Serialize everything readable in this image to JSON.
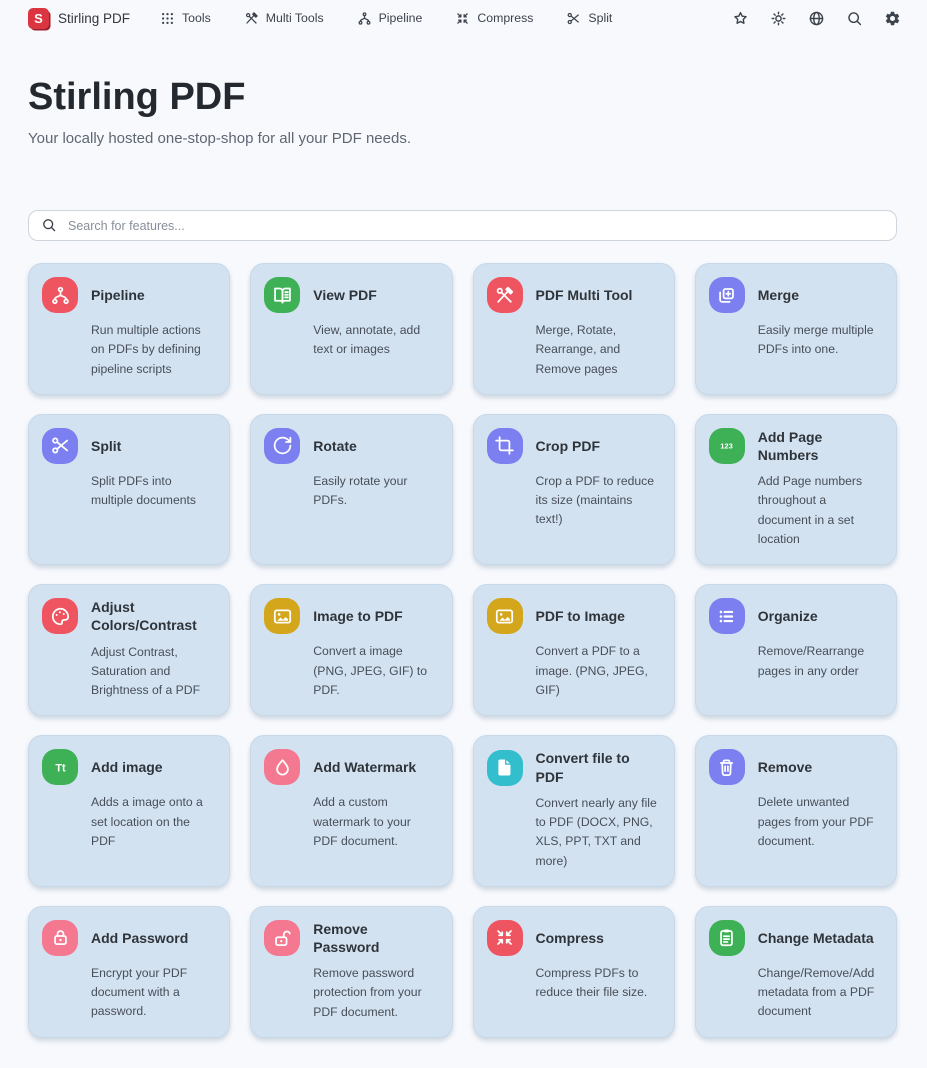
{
  "navbar": {
    "logo_letter": "S",
    "brand": "Stirling PDF",
    "items": [
      {
        "icon": "grid-icon",
        "label": "Tools"
      },
      {
        "icon": "tools-icon",
        "label": "Multi Tools"
      },
      {
        "icon": "pipeline-icon",
        "label": "Pipeline"
      },
      {
        "icon": "compress-icon",
        "label": "Compress"
      },
      {
        "icon": "scissors-icon",
        "label": "Split"
      }
    ],
    "actions": [
      {
        "icon": "star-icon"
      },
      {
        "icon": "sun-icon"
      },
      {
        "icon": "globe-icon"
      },
      {
        "icon": "search-icon"
      },
      {
        "icon": "gear-icon"
      }
    ]
  },
  "header": {
    "title": "Stirling PDF",
    "subtitle": "Your locally hosted one-stop-shop for all your PDF needs."
  },
  "search": {
    "placeholder": "Search for features..."
  },
  "palette": {
    "red": "#ef5560",
    "green": "#3eb156",
    "purple": "#7b7ff0",
    "gold": "#d3a61c",
    "pink": "#f57891",
    "teal": "#32becd",
    "card_bg": "#d3e2f0",
    "logo_red": "#da3540"
  },
  "cards": [
    {
      "title": "Pipeline",
      "icon": "pipeline-icon",
      "color": "red",
      "description": "Run multiple actions on PDFs by defining pipeline scripts"
    },
    {
      "title": "View PDF",
      "icon": "book-open-icon",
      "color": "green",
      "description": "View, annotate, add text or images"
    },
    {
      "title": "PDF Multi Tool",
      "icon": "tools-icon",
      "color": "red",
      "description": "Merge, Rotate, Rearrange, and Remove pages"
    },
    {
      "title": "Merge",
      "icon": "merge-icon",
      "color": "purple",
      "description": "Easily merge multiple PDFs into one."
    },
    {
      "title": "Split",
      "icon": "scissors-icon",
      "color": "purple",
      "description": "Split PDFs into multiple documents"
    },
    {
      "title": "Rotate",
      "icon": "rotate-icon",
      "color": "purple",
      "description": "Easily rotate your PDFs."
    },
    {
      "title": "Crop PDF",
      "icon": "crop-icon",
      "color": "purple",
      "description": "Crop a PDF to reduce its size (maintains text!)"
    },
    {
      "title": "Add Page Numbers",
      "icon": "numbers-123-icon",
      "color": "green",
      "description": "Add Page numbers throughout a document in a set location"
    },
    {
      "title": "Adjust Colors/Contrast",
      "icon": "palette-icon",
      "color": "red",
      "description": "Adjust Contrast, Saturation and Brightness of a PDF"
    },
    {
      "title": "Image to PDF",
      "icon": "image-icon",
      "color": "gold",
      "description": "Convert a image (PNG, JPEG, GIF) to PDF."
    },
    {
      "title": "PDF to Image",
      "icon": "image-icon",
      "color": "gold",
      "description": "Convert a PDF to a image. (PNG, JPEG, GIF)"
    },
    {
      "title": "Organize",
      "icon": "list-icon",
      "color": "purple",
      "description": "Remove/Rearrange pages in any order"
    },
    {
      "title": "Add image",
      "icon": "text-Tt-icon",
      "color": "green",
      "description": "Adds a image onto a set location on the PDF"
    },
    {
      "title": "Add Watermark",
      "icon": "droplet-icon",
      "color": "pink",
      "description": "Add a custom watermark to your PDF document."
    },
    {
      "title": "Convert file to PDF",
      "icon": "file-icon",
      "color": "teal",
      "description": "Convert nearly any file to PDF (DOCX, PNG, XLS, PPT, TXT and more)"
    },
    {
      "title": "Remove",
      "icon": "trash-icon",
      "color": "purple",
      "description": "Delete unwanted pages from your PDF document."
    },
    {
      "title": "Add Password",
      "icon": "lock-icon",
      "color": "pink",
      "description": "Encrypt your PDF document with a password."
    },
    {
      "title": "Remove Password",
      "icon": "unlock-icon",
      "color": "pink",
      "description": "Remove password protection from your PDF document."
    },
    {
      "title": "Compress",
      "icon": "compress-icon",
      "color": "red",
      "description": "Compress PDFs to reduce their file size."
    },
    {
      "title": "Change Metadata",
      "icon": "clipboard-icon",
      "color": "green",
      "description": "Change/Remove/Add metadata from a PDF document"
    }
  ]
}
